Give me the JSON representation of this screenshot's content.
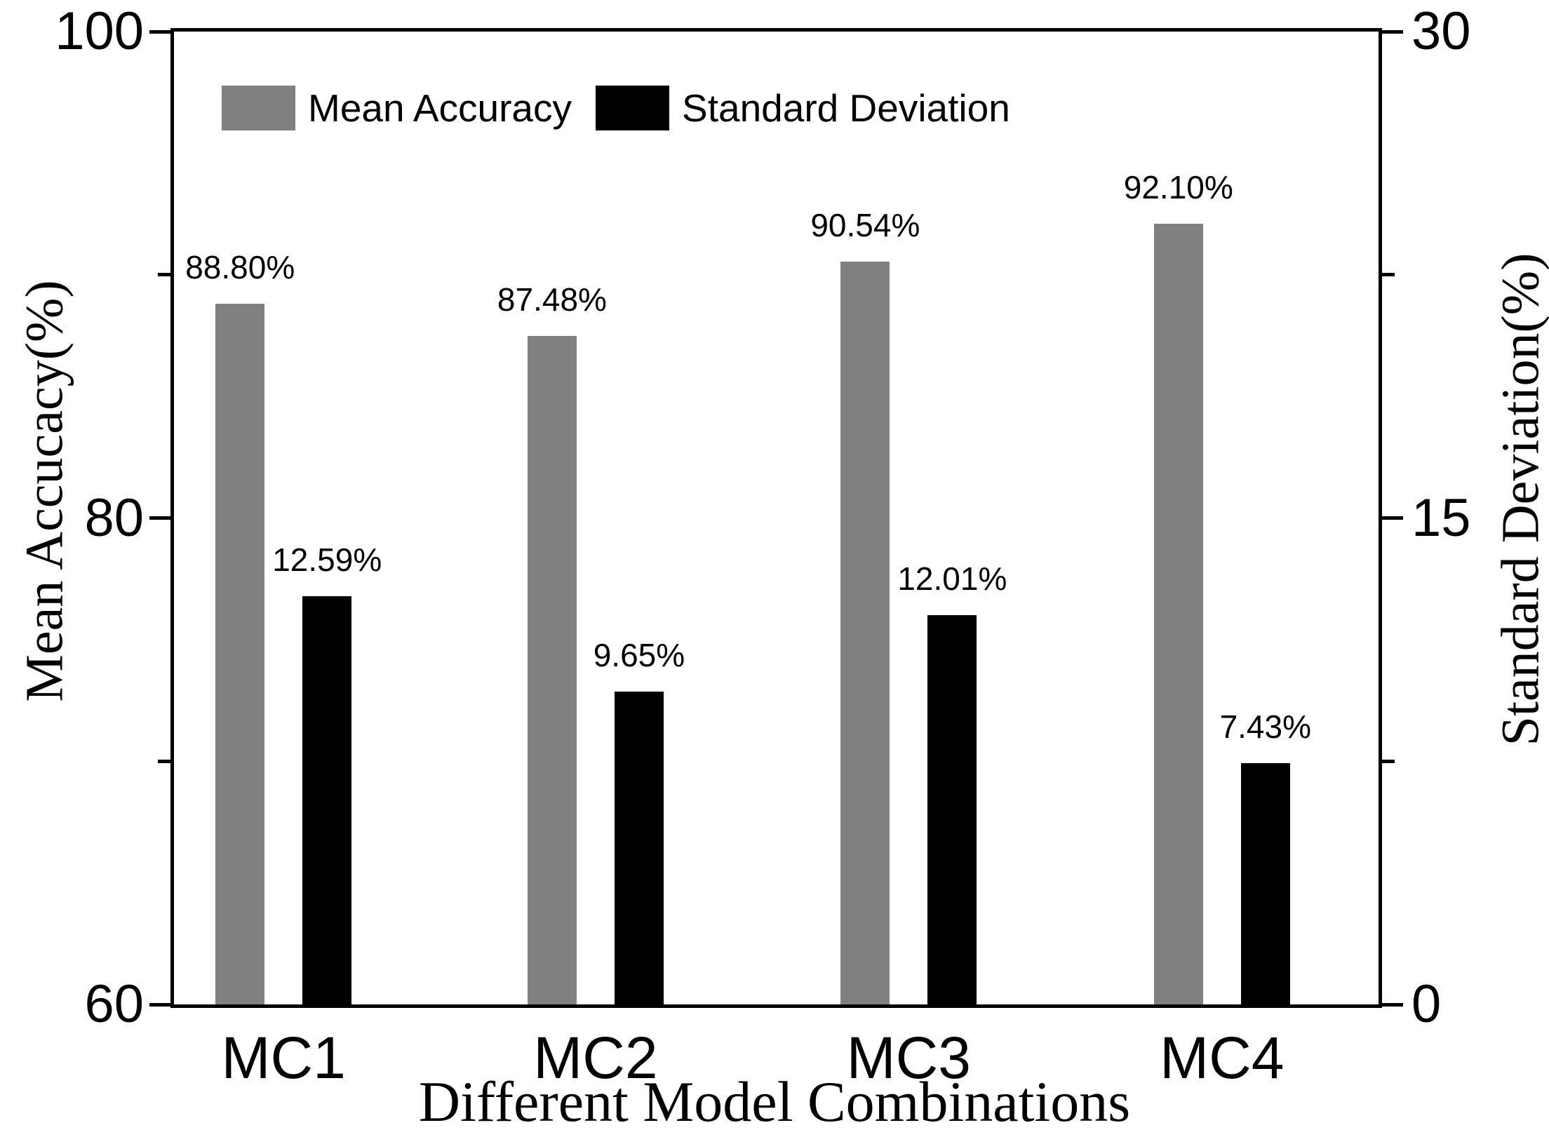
{
  "figure": {
    "background": "#ffffff",
    "text_color": "#000000"
  },
  "legend": {
    "items": [
      {
        "label": "Mean Accuracy",
        "color": "#808080"
      },
      {
        "label": "Standard Deviation",
        "color": "#000000"
      }
    ]
  },
  "chart_data": {
    "type": "bar",
    "categories": [
      "MC1",
      "MC2",
      "MC3",
      "MC4"
    ],
    "series": [
      {
        "name": "Mean Accuracy",
        "axis": "left",
        "color": "#808080",
        "values": [
          88.8,
          87.48,
          90.54,
          92.1
        ],
        "value_labels": [
          "88.80%",
          "87.48%",
          "90.54%",
          "92.10%"
        ]
      },
      {
        "name": "Standard Deviation",
        "axis": "right",
        "color": "#000000",
        "values": [
          12.59,
          9.65,
          12.01,
          7.43
        ],
        "value_labels": [
          "12.59%",
          "9.65%",
          "12.01%",
          "7.43%"
        ]
      }
    ],
    "xlabel": "Different Model Combinations",
    "ylabel_left": "Mean Accucacy(%)",
    "ylabel_right": "Standard Deviation(%)",
    "axis_left": {
      "min": 60,
      "max": 100,
      "major_ticks": [
        60,
        80,
        100
      ],
      "minor_ticks": [
        70,
        90
      ],
      "labels": [
        "60",
        "80",
        "100"
      ]
    },
    "axis_right": {
      "min": 0,
      "max": 30,
      "major_ticks": [
        0,
        15,
        30
      ],
      "minor_ticks": [
        7.5,
        22.5
      ],
      "labels": [
        "0",
        "15",
        "30"
      ]
    },
    "grid": false,
    "legend_position": "top-left-inside",
    "bars_per_group": 2
  }
}
